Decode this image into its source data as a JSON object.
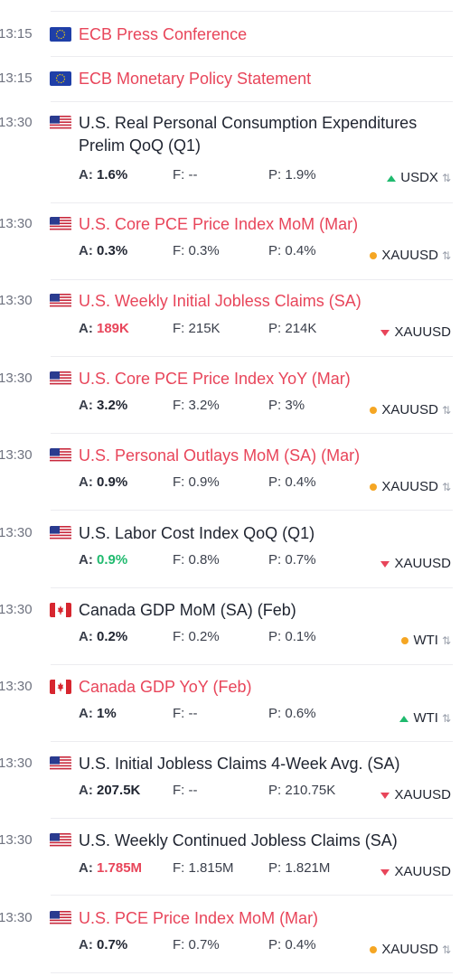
{
  "events": [
    {
      "time": "13:15",
      "country": "EU",
      "title": "ECB Press Conference",
      "highlight": true
    },
    {
      "time": "13:15",
      "country": "EU",
      "title": "ECB Monetary Policy Statement",
      "highlight": true
    },
    {
      "time": "13:30",
      "country": "US",
      "title": "U.S. Real Personal Consumption Expenditures Prelim QoQ (Q1)",
      "highlight": false,
      "actual_label": "A:",
      "actual": "1.6%",
      "forecast_label": "F:",
      "forecast": "--",
      "previous_label": "P:",
      "previous": "1.9%",
      "asset": "USDX",
      "asset_indicator": "up",
      "swap_icon": "⇅"
    },
    {
      "time": "13:30",
      "country": "US",
      "title": "U.S. Core PCE Price Index MoM (Mar)",
      "highlight": true,
      "actual_label": "A:",
      "actual": "0.3%",
      "forecast_label": "F:",
      "forecast": "0.3%",
      "previous_label": "P:",
      "previous": "0.4%",
      "asset": "XAUUSD",
      "asset_indicator": "neutral",
      "swap_icon": "⇅"
    },
    {
      "time": "13:30",
      "country": "US",
      "title": "U.S. Weekly Initial Jobless Claims (SA)",
      "highlight": true,
      "actual_label": "A:",
      "actual": "189K",
      "actual_color": "red",
      "forecast_label": "F:",
      "forecast": "215K",
      "previous_label": "P:",
      "previous": "214K",
      "asset": "XAUUSD",
      "asset_indicator": "down"
    },
    {
      "time": "13:30",
      "country": "US",
      "title": "U.S. Core PCE Price Index YoY (Mar)",
      "highlight": true,
      "actual_label": "A:",
      "actual": "3.2%",
      "forecast_label": "F:",
      "forecast": "3.2%",
      "previous_label": "P:",
      "previous": "3%",
      "asset": "XAUUSD",
      "asset_indicator": "neutral",
      "swap_icon": "⇅"
    },
    {
      "time": "13:30",
      "country": "US",
      "title": "U.S. Personal Outlays MoM (SA) (Mar)",
      "highlight": true,
      "actual_label": "A:",
      "actual": "0.9%",
      "forecast_label": "F:",
      "forecast": "0.9%",
      "previous_label": "P:",
      "previous": "0.4%",
      "asset": "XAUUSD",
      "asset_indicator": "neutral",
      "swap_icon": "⇅"
    },
    {
      "time": "13:30",
      "country": "US",
      "title": "U.S. Labor Cost Index QoQ (Q1)",
      "highlight": false,
      "actual_label": "A:",
      "actual": "0.9%",
      "actual_color": "green",
      "forecast_label": "F:",
      "forecast": "0.8%",
      "previous_label": "P:",
      "previous": "0.7%",
      "asset": "XAUUSD",
      "asset_indicator": "down"
    },
    {
      "time": "13:30",
      "country": "CA",
      "title": "Canada GDP MoM (SA) (Feb)",
      "highlight": false,
      "actual_label": "A:",
      "actual": "0.2%",
      "forecast_label": "F:",
      "forecast": "0.2%",
      "previous_label": "P:",
      "previous": "0.1%",
      "asset": "WTI",
      "asset_indicator": "neutral",
      "swap_icon": "⇅"
    },
    {
      "time": "13:30",
      "country": "CA",
      "title": "Canada GDP YoY (Feb)",
      "highlight": true,
      "actual_label": "A:",
      "actual": "1%",
      "forecast_label": "F:",
      "forecast": "--",
      "previous_label": "P:",
      "previous": "0.6%",
      "asset": "WTI",
      "asset_indicator": "up",
      "swap_icon": "⇅"
    },
    {
      "time": "13:30",
      "country": "US",
      "title": "U.S. Initial Jobless Claims 4-Week Avg. (SA)",
      "highlight": false,
      "actual_label": "A:",
      "actual": "207.5K",
      "forecast_label": "F:",
      "forecast": "--",
      "previous_label": "P:",
      "previous": "210.75K",
      "asset": "XAUUSD",
      "asset_indicator": "down"
    },
    {
      "time": "13:30",
      "country": "US",
      "title": "U.S. Weekly Continued Jobless Claims (SA)",
      "highlight": false,
      "actual_label": "A:",
      "actual": "1.785M",
      "actual_color": "red",
      "forecast_label": "F:",
      "forecast": "1.815M",
      "previous_label": "P:",
      "previous": "1.821M",
      "asset": "XAUUSD",
      "asset_indicator": "down"
    },
    {
      "time": "13:30",
      "country": "US",
      "title": "U.S. PCE Price Index MoM (Mar)",
      "highlight": true,
      "actual_label": "A:",
      "actual": "0.7%",
      "forecast_label": "F:",
      "forecast": "0.7%",
      "previous_label": "P:",
      "previous": "0.4%",
      "asset": "XAUUSD",
      "asset_indicator": "neutral",
      "swap_icon": "⇅"
    }
  ],
  "colors": {
    "highlight_title": "#e8455a",
    "actual_red": "#e8455a",
    "actual_green": "#1fba6e",
    "indicator_up": "#1fba6e",
    "indicator_down": "#e8455a",
    "indicator_neutral": "#f5a623"
  }
}
